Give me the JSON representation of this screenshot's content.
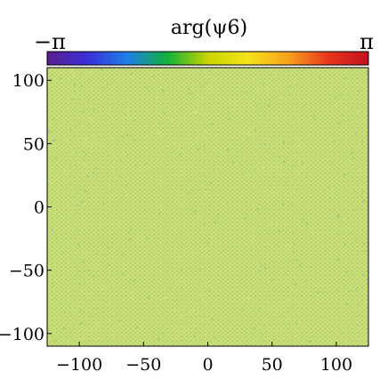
{
  "chart_data": {
    "type": "heatmap",
    "title": "arg(ψ6)",
    "colorbar": {
      "label": "arg(ψ6)",
      "min_label": "−π",
      "max_label": "π",
      "range": [
        -3.14159,
        3.14159
      ],
      "colormap": "hsv-like (purple → blue → green → yellow → orange → red)",
      "colormap_stops": [
        "#5b1e8c",
        "#3b2fd8",
        "#1f7fe8",
        "#10b23a",
        "#c8d400",
        "#f5e31a",
        "#f7a21b",
        "#e8351c",
        "#c1121f"
      ]
    },
    "xlim": [
      -125,
      125
    ],
    "ylim": [
      -110,
      110
    ],
    "xticks": [
      -100,
      -50,
      0,
      50,
      100
    ],
    "xtick_labels": [
      "−100",
      "−50",
      "0",
      "50",
      "100"
    ],
    "yticks": [
      -100,
      -50,
      0,
      50,
      100
    ],
    "ytick_labels": [
      "−100",
      "−50",
      "0",
      "50",
      "100"
    ],
    "field_description": "triangular lattice of particles, nearly uniform phase",
    "dominant_value": 1.0,
    "dominant_color": "#c3da74",
    "secondary_colors": [
      "#a9cf6e",
      "#dde084",
      "#8fc47a"
    ],
    "grid": false
  }
}
